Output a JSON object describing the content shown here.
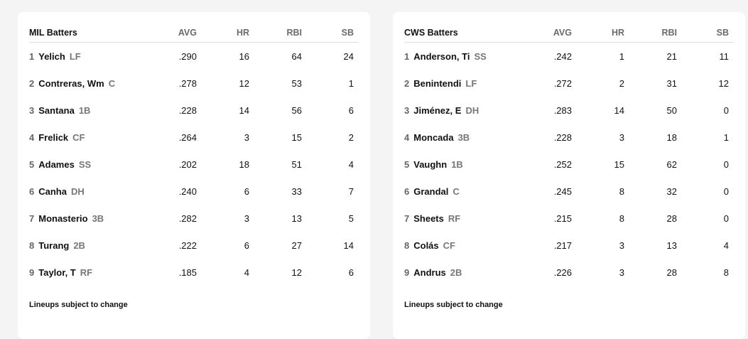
{
  "teams": [
    {
      "title": "MIL Batters",
      "columns": [
        "AVG",
        "HR",
        "RBI",
        "SB"
      ],
      "footer": "Lineups subject to change",
      "rows": [
        {
          "order": "1",
          "name": "Yelich",
          "pos": "LF",
          "avg": ".290",
          "hr": "16",
          "rbi": "64",
          "sb": "24"
        },
        {
          "order": "2",
          "name": "Contreras, Wm",
          "pos": "C",
          "avg": ".278",
          "hr": "12",
          "rbi": "53",
          "sb": "1"
        },
        {
          "order": "3",
          "name": "Santana",
          "pos": "1B",
          "avg": ".228",
          "hr": "14",
          "rbi": "56",
          "sb": "6"
        },
        {
          "order": "4",
          "name": "Frelick",
          "pos": "CF",
          "avg": ".264",
          "hr": "3",
          "rbi": "15",
          "sb": "2"
        },
        {
          "order": "5",
          "name": "Adames",
          "pos": "SS",
          "avg": ".202",
          "hr": "18",
          "rbi": "51",
          "sb": "4"
        },
        {
          "order": "6",
          "name": "Canha",
          "pos": "DH",
          "avg": ".240",
          "hr": "6",
          "rbi": "33",
          "sb": "7"
        },
        {
          "order": "7",
          "name": "Monasterio",
          "pos": "3B",
          "avg": ".282",
          "hr": "3",
          "rbi": "13",
          "sb": "5"
        },
        {
          "order": "8",
          "name": "Turang",
          "pos": "2B",
          "avg": ".222",
          "hr": "6",
          "rbi": "27",
          "sb": "14"
        },
        {
          "order": "9",
          "name": "Taylor, T",
          "pos": "RF",
          "avg": ".185",
          "hr": "4",
          "rbi": "12",
          "sb": "6"
        }
      ]
    },
    {
      "title": "CWS Batters",
      "columns": [
        "AVG",
        "HR",
        "RBI",
        "SB"
      ],
      "footer": "Lineups subject to change",
      "rows": [
        {
          "order": "1",
          "name": "Anderson, Ti",
          "pos": "SS",
          "avg": ".242",
          "hr": "1",
          "rbi": "21",
          "sb": "11"
        },
        {
          "order": "2",
          "name": "Benintendi",
          "pos": "LF",
          "avg": ".272",
          "hr": "2",
          "rbi": "31",
          "sb": "12"
        },
        {
          "order": "3",
          "name": "Jiménez, E",
          "pos": "DH",
          "avg": ".283",
          "hr": "14",
          "rbi": "50",
          "sb": "0"
        },
        {
          "order": "4",
          "name": "Moncada",
          "pos": "3B",
          "avg": ".228",
          "hr": "3",
          "rbi": "18",
          "sb": "1"
        },
        {
          "order": "5",
          "name": "Vaughn",
          "pos": "1B",
          "avg": ".252",
          "hr": "15",
          "rbi": "62",
          "sb": "0"
        },
        {
          "order": "6",
          "name": "Grandal",
          "pos": "C",
          "avg": ".245",
          "hr": "8",
          "rbi": "32",
          "sb": "0"
        },
        {
          "order": "7",
          "name": "Sheets",
          "pos": "RF",
          "avg": ".215",
          "hr": "8",
          "rbi": "28",
          "sb": "0"
        },
        {
          "order": "8",
          "name": "Colás",
          "pos": "CF",
          "avg": ".217",
          "hr": "3",
          "rbi": "13",
          "sb": "4"
        },
        {
          "order": "9",
          "name": "Andrus",
          "pos": "2B",
          "avg": ".226",
          "hr": "3",
          "rbi": "28",
          "sb": "8"
        }
      ]
    }
  ]
}
